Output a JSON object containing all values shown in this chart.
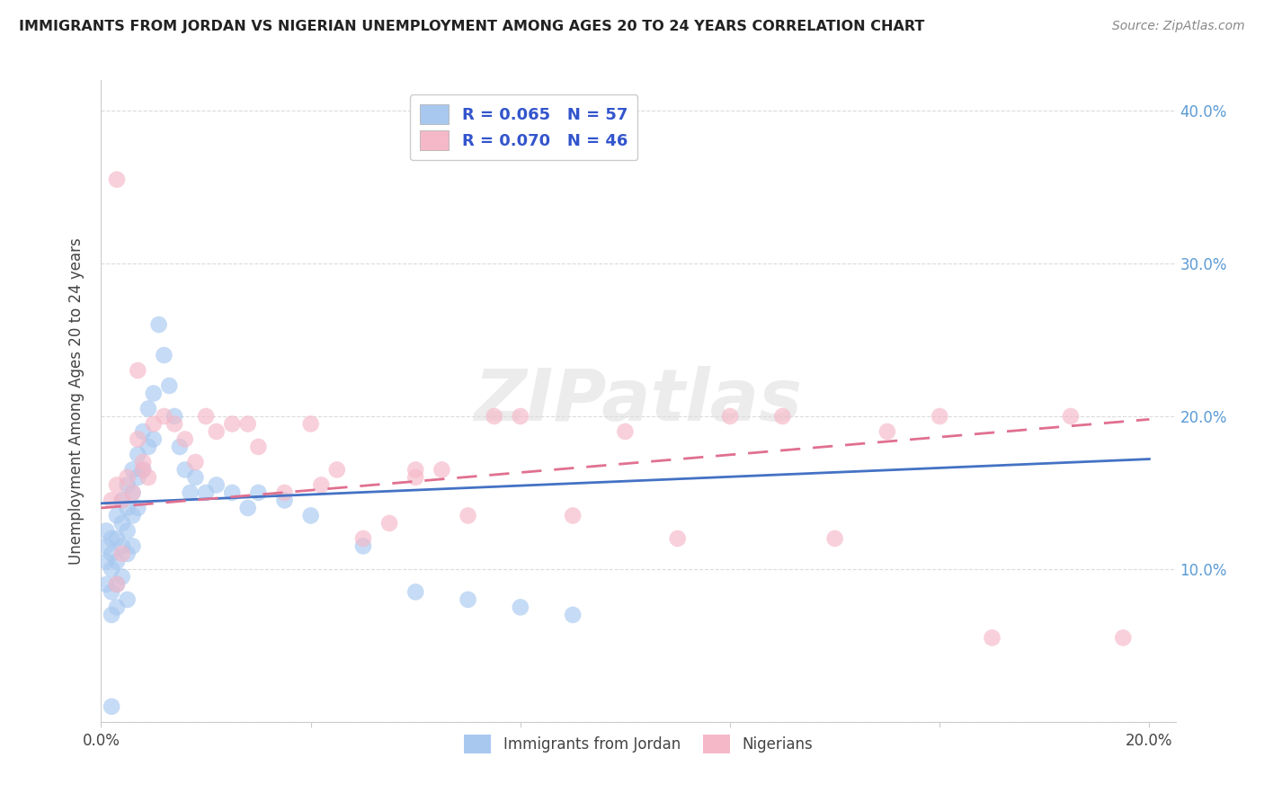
{
  "title": "IMMIGRANTS FROM JORDAN VS NIGERIAN UNEMPLOYMENT AMONG AGES 20 TO 24 YEARS CORRELATION CHART",
  "source": "Source: ZipAtlas.com",
  "ylabel": "Unemployment Among Ages 20 to 24 years",
  "xlim": [
    0.0,
    0.205
  ],
  "ylim": [
    0.0,
    0.42
  ],
  "color_blue": "#A8C8F0",
  "color_pink": "#F5B8C8",
  "color_blue_line": "#4472C4",
  "color_pink_line": "#E07090",
  "color_right_axis": "#5B9BD5",
  "watermark": "ZIPatlas",
  "jordan_trend": [
    0.143,
    0.172
  ],
  "nigerian_trend": [
    0.14,
    0.198
  ],
  "jordan_x": [
    0.001,
    0.001,
    0.001,
    0.001,
    0.002,
    0.002,
    0.002,
    0.002,
    0.002,
    0.003,
    0.003,
    0.003,
    0.003,
    0.003,
    0.004,
    0.004,
    0.004,
    0.004,
    0.005,
    0.005,
    0.005,
    0.005,
    0.005,
    0.006,
    0.006,
    0.006,
    0.006,
    0.007,
    0.007,
    0.007,
    0.008,
    0.008,
    0.009,
    0.009,
    0.01,
    0.01,
    0.011,
    0.012,
    0.013,
    0.014,
    0.015,
    0.016,
    0.017,
    0.018,
    0.02,
    0.022,
    0.025,
    0.028,
    0.03,
    0.035,
    0.04,
    0.05,
    0.06,
    0.07,
    0.08,
    0.09,
    0.002
  ],
  "jordan_y": [
    0.125,
    0.115,
    0.105,
    0.09,
    0.12,
    0.11,
    0.1,
    0.085,
    0.07,
    0.135,
    0.12,
    0.105,
    0.09,
    0.075,
    0.145,
    0.13,
    0.115,
    0.095,
    0.155,
    0.14,
    0.125,
    0.11,
    0.08,
    0.165,
    0.15,
    0.135,
    0.115,
    0.175,
    0.16,
    0.14,
    0.19,
    0.165,
    0.205,
    0.18,
    0.215,
    0.185,
    0.26,
    0.24,
    0.22,
    0.2,
    0.18,
    0.165,
    0.15,
    0.16,
    0.15,
    0.155,
    0.15,
    0.14,
    0.15,
    0.145,
    0.135,
    0.115,
    0.085,
    0.08,
    0.075,
    0.07,
    0.01
  ],
  "nigerian_x": [
    0.002,
    0.003,
    0.003,
    0.004,
    0.005,
    0.006,
    0.007,
    0.007,
    0.008,
    0.009,
    0.01,
    0.012,
    0.014,
    0.016,
    0.018,
    0.02,
    0.022,
    0.025,
    0.028,
    0.03,
    0.035,
    0.04,
    0.042,
    0.045,
    0.05,
    0.055,
    0.06,
    0.065,
    0.07,
    0.075,
    0.08,
    0.09,
    0.1,
    0.11,
    0.12,
    0.13,
    0.14,
    0.15,
    0.16,
    0.17,
    0.185,
    0.195,
    0.003,
    0.004,
    0.008,
    0.06
  ],
  "nigerian_y": [
    0.145,
    0.355,
    0.155,
    0.145,
    0.16,
    0.15,
    0.185,
    0.23,
    0.165,
    0.16,
    0.195,
    0.2,
    0.195,
    0.185,
    0.17,
    0.2,
    0.19,
    0.195,
    0.195,
    0.18,
    0.15,
    0.195,
    0.155,
    0.165,
    0.12,
    0.13,
    0.165,
    0.165,
    0.135,
    0.2,
    0.2,
    0.135,
    0.19,
    0.12,
    0.2,
    0.2,
    0.12,
    0.19,
    0.2,
    0.055,
    0.2,
    0.055,
    0.09,
    0.11,
    0.17,
    0.16
  ]
}
